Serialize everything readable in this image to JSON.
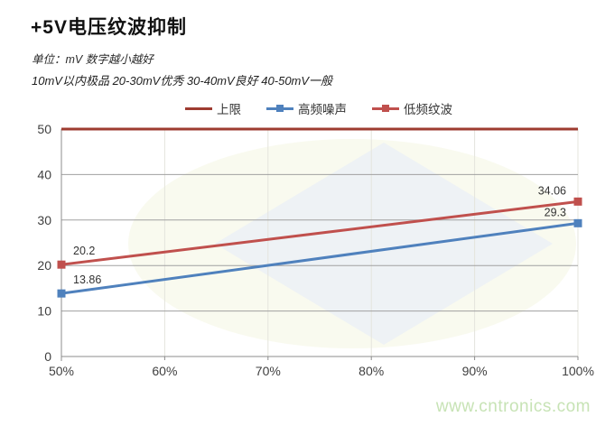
{
  "header": {
    "title": "+5V电压纹波抑制",
    "subtitle1": "单位：mV  数字越小越好",
    "subtitle2": "10mV以内极品  20-30mV优秀  30-40mV良好  40-50mV一般"
  },
  "watermark_text": "www.cntronics.com",
  "colors": {
    "grid": "#a0a0a0",
    "grid_vertical": "#e4e4dc",
    "axis": "#8c8c8c",
    "tick_label": "#3f3f3f",
    "watermark_text": "#c7e3b5",
    "logo_ellipse": "#f5f7e4",
    "logo_diamond": "#e8eef8"
  },
  "chart_data": {
    "type": "line",
    "title": "+5V电压纹波抑制",
    "unit": "mV",
    "xlim": [
      50,
      100
    ],
    "ylim": [
      0,
      50
    ],
    "xticks": [
      50,
      60,
      70,
      80,
      90,
      100
    ],
    "xtick_labels": [
      "50%",
      "60%",
      "70%",
      "80%",
      "90%",
      "100%"
    ],
    "yticks": [
      0,
      10,
      20,
      30,
      40,
      50
    ],
    "ytick_labels": [
      "0",
      "10",
      "20",
      "30",
      "40",
      "50"
    ],
    "grid": true,
    "legend_position": "top",
    "series": [
      {
        "name": "上限",
        "color": "#9e3b30",
        "marker": false,
        "points": [
          [
            50,
            50
          ],
          [
            100,
            50
          ]
        ],
        "data_labels": null
      },
      {
        "name": "高频噪声",
        "color": "#4f81bd",
        "marker": true,
        "points": [
          [
            50,
            13.86
          ],
          [
            100,
            29.3
          ]
        ],
        "data_labels": [
          "13.86",
          "29.3"
        ]
      },
      {
        "name": "低频纹波",
        "color": "#c0504d",
        "marker": true,
        "points": [
          [
            50,
            20.2
          ],
          [
            100,
            34.06
          ]
        ],
        "data_labels": [
          "20.2",
          "34.06"
        ]
      }
    ]
  }
}
